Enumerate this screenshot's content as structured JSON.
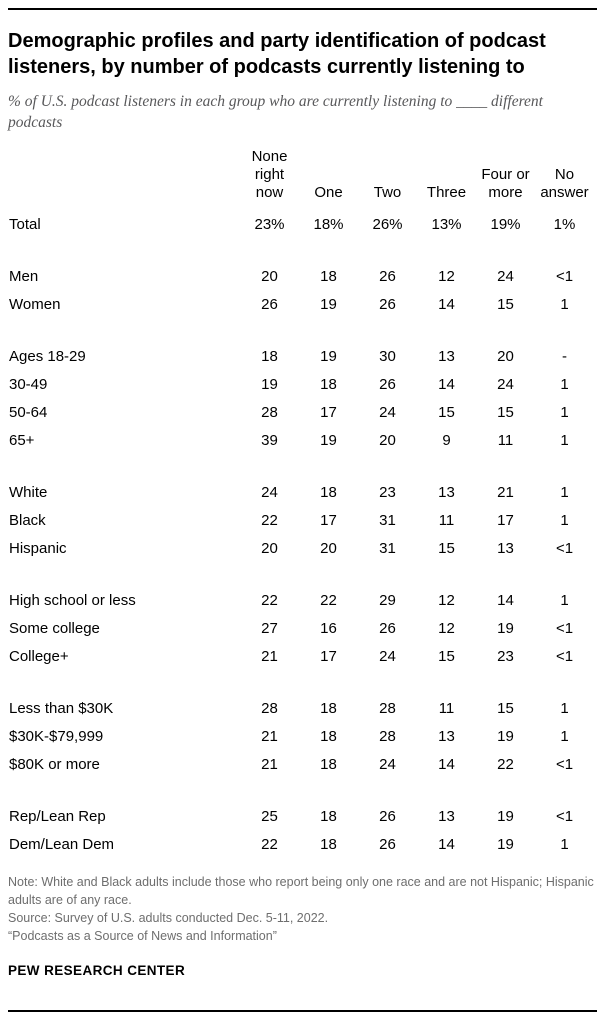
{
  "header": {
    "title": "Demographic profiles and party identification of podcast listeners, by number of podcasts currently listening to",
    "subtitle": "% of U.S. podcast listeners in each group who are currently listening to ____ different podcasts"
  },
  "table": {
    "columns": [
      "None\nright now",
      "One",
      "Two",
      "Three",
      "Four or\nmore",
      "No\nanswer"
    ],
    "groups": [
      {
        "rows": [
          {
            "label": "Total",
            "values": [
              "23%",
              "18%",
              "26%",
              "13%",
              "19%",
              "1%"
            ]
          }
        ]
      },
      {
        "rows": [
          {
            "label": "Men",
            "values": [
              "20",
              "18",
              "26",
              "12",
              "24",
              "<1"
            ]
          },
          {
            "label": "Women",
            "values": [
              "26",
              "19",
              "26",
              "14",
              "15",
              "1"
            ]
          }
        ]
      },
      {
        "rows": [
          {
            "label": "Ages 18-29",
            "values": [
              "18",
              "19",
              "30",
              "13",
              "20",
              "-"
            ]
          },
          {
            "label": "30-49",
            "values": [
              "19",
              "18",
              "26",
              "14",
              "24",
              "1"
            ]
          },
          {
            "label": "50-64",
            "values": [
              "28",
              "17",
              "24",
              "15",
              "15",
              "1"
            ]
          },
          {
            "label": "65+",
            "values": [
              "39",
              "19",
              "20",
              "9",
              "11",
              "1"
            ]
          }
        ]
      },
      {
        "rows": [
          {
            "label": "White",
            "values": [
              "24",
              "18",
              "23",
              "13",
              "21",
              "1"
            ]
          },
          {
            "label": "Black",
            "values": [
              "22",
              "17",
              "31",
              "11",
              "17",
              "1"
            ]
          },
          {
            "label": "Hispanic",
            "values": [
              "20",
              "20",
              "31",
              "15",
              "13",
              "<1"
            ]
          }
        ]
      },
      {
        "rows": [
          {
            "label": "High school or less",
            "values": [
              "22",
              "22",
              "29",
              "12",
              "14",
              "1"
            ]
          },
          {
            "label": "Some college",
            "values": [
              "27",
              "16",
              "26",
              "12",
              "19",
              "<1"
            ]
          },
          {
            "label": "College+",
            "values": [
              "21",
              "17",
              "24",
              "15",
              "23",
              "<1"
            ]
          }
        ]
      },
      {
        "rows": [
          {
            "label": "Less than $30K",
            "values": [
              "28",
              "18",
              "28",
              "11",
              "15",
              "1"
            ]
          },
          {
            "label": "$30K-$79,999",
            "values": [
              "21",
              "18",
              "28",
              "13",
              "19",
              "1"
            ]
          },
          {
            "label": "$80K or more",
            "values": [
              "21",
              "18",
              "24",
              "14",
              "22",
              "<1"
            ]
          }
        ]
      },
      {
        "rows": [
          {
            "label": "Rep/Lean Rep",
            "values": [
              "25",
              "18",
              "26",
              "13",
              "19",
              "<1"
            ]
          },
          {
            "label": "Dem/Lean Dem",
            "values": [
              "22",
              "18",
              "26",
              "14",
              "19",
              "1"
            ]
          }
        ]
      }
    ]
  },
  "footer": {
    "note": "Note: White and Black adults include those who report being only one race and are not Hispanic; Hispanic adults are of any race.",
    "source": "Source: Survey of U.S. adults conducted Dec. 5-11, 2022.",
    "report": "“Podcasts as a Source of News and Information”",
    "brand": "PEW RESEARCH CENTER"
  },
  "chart_data": {
    "type": "table",
    "title": "Demographic profiles and party identification of podcast listeners, by number of podcasts currently listening to",
    "subtitle": "% of U.S. podcast listeners in each group who are currently listening to ____ different podcasts",
    "columns": [
      "None right now",
      "One",
      "Two",
      "Three",
      "Four or more",
      "No answer"
    ],
    "rows": [
      {
        "label": "Total",
        "values": [
          "23%",
          "18%",
          "26%",
          "13%",
          "19%",
          "1%"
        ]
      },
      {
        "label": "Men",
        "values": [
          "20",
          "18",
          "26",
          "12",
          "24",
          "<1"
        ]
      },
      {
        "label": "Women",
        "values": [
          "26",
          "19",
          "26",
          "14",
          "15",
          "1"
        ]
      },
      {
        "label": "Ages 18-29",
        "values": [
          "18",
          "19",
          "30",
          "13",
          "20",
          "-"
        ]
      },
      {
        "label": "30-49",
        "values": [
          "19",
          "18",
          "26",
          "14",
          "24",
          "1"
        ]
      },
      {
        "label": "50-64",
        "values": [
          "28",
          "17",
          "24",
          "15",
          "15",
          "1"
        ]
      },
      {
        "label": "65+",
        "values": [
          "39",
          "19",
          "20",
          "9",
          "11",
          "1"
        ]
      },
      {
        "label": "White",
        "values": [
          "24",
          "18",
          "23",
          "13",
          "21",
          "1"
        ]
      },
      {
        "label": "Black",
        "values": [
          "22",
          "17",
          "31",
          "11",
          "17",
          "1"
        ]
      },
      {
        "label": "Hispanic",
        "values": [
          "20",
          "20",
          "31",
          "15",
          "13",
          "<1"
        ]
      },
      {
        "label": "High school or less",
        "values": [
          "22",
          "22",
          "29",
          "12",
          "14",
          "1"
        ]
      },
      {
        "label": "Some college",
        "values": [
          "27",
          "16",
          "26",
          "12",
          "19",
          "<1"
        ]
      },
      {
        "label": "College+",
        "values": [
          "21",
          "17",
          "24",
          "15",
          "23",
          "<1"
        ]
      },
      {
        "label": "Less than $30K",
        "values": [
          "28",
          "18",
          "28",
          "11",
          "15",
          "1"
        ]
      },
      {
        "label": "$30K-$79,999",
        "values": [
          "21",
          "18",
          "28",
          "13",
          "19",
          "1"
        ]
      },
      {
        "label": "$80K or more",
        "values": [
          "21",
          "18",
          "24",
          "14",
          "22",
          "<1"
        ]
      },
      {
        "label": "Rep/Lean Rep",
        "values": [
          "25",
          "18",
          "26",
          "13",
          "19",
          "<1"
        ]
      },
      {
        "label": "Dem/Lean Dem",
        "values": [
          "22",
          "18",
          "26",
          "14",
          "19",
          "1"
        ]
      }
    ]
  }
}
